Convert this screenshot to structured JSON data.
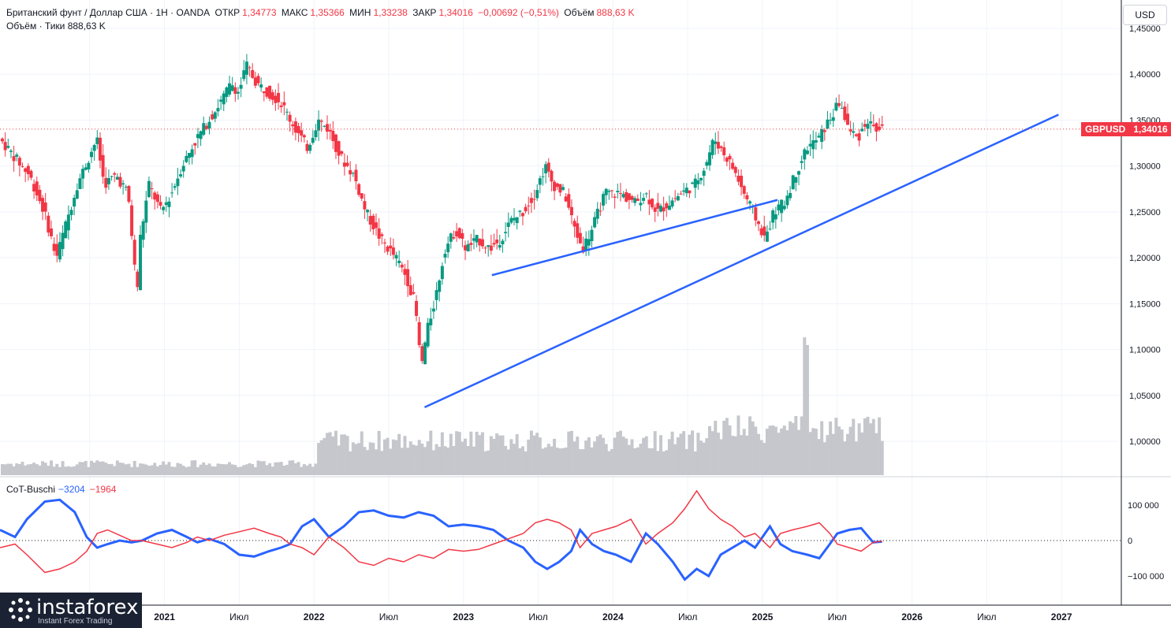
{
  "header": {
    "symbol": "Британский фунт / Доллар США · 1Н · OANDA",
    "open_label": "ОТКР",
    "open": "1,34773",
    "high_label": "МАКС",
    "high": "1,35366",
    "low_label": "МИН",
    "low": "1,33238",
    "close_label": "ЗАКР",
    "close": "1,34016",
    "change": "−0,00692 (−0,51%)",
    "volume_label": "Объём",
    "volume": "888,63 K",
    "line2_label": "Объём · Тики",
    "line2_value": "888,63 K"
  },
  "currency": "USD",
  "price_tag": {
    "symbol": "GBPUSD",
    "value": "1,34016"
  },
  "cot": {
    "label": "CoT-Buschi",
    "blue_value": "−3204",
    "red_value": "−1964"
  },
  "colors": {
    "up": "#089981",
    "down": "#f23645",
    "trend": "#2962ff",
    "volume": "#c5c7cc",
    "cot_blue": "#2962ff",
    "cot_red": "#f23645"
  },
  "logo": {
    "name": "instaforex",
    "tagline": "Instant Forex Trading"
  },
  "chart_data": [
    {
      "type": "candlestick",
      "symbol": "GBPUSD",
      "last_price": 1.34016,
      "ylim": [
        0.97,
        1.46
      ],
      "yticks": [
        "1,45000",
        "1,40000",
        "1,35000",
        "1,30000",
        "1,25000",
        "1,20000",
        "1,15000",
        "1,10000",
        "1,05000",
        "1,00000"
      ],
      "ytick_values": [
        1.45,
        1.4,
        1.35,
        1.3,
        1.25,
        1.2,
        1.15,
        1.1,
        1.05,
        1.0
      ],
      "xticks": [
        "Июл",
        "2021",
        "Июл",
        "2022",
        "Июл",
        "2023",
        "Июл",
        "2024",
        "Июл",
        "2025",
        "Июл",
        "2026",
        "Июл",
        "2027"
      ],
      "xtick_times": [
        2020.5,
        2021.0,
        2021.5,
        2022.0,
        2022.5,
        2023.0,
        2023.5,
        2024.0,
        2024.5,
        2025.0,
        2025.5,
        2026.0,
        2026.5,
        2027.0
      ],
      "xlim": [
        2019.9,
        2027.4
      ],
      "price_path": [
        [
          2019.9,
          1.33
        ],
        [
          2020.0,
          1.31
        ],
        [
          2020.1,
          1.29
        ],
        [
          2020.2,
          1.25
        ],
        [
          2020.28,
          1.2
        ],
        [
          2020.35,
          1.24
        ],
        [
          2020.42,
          1.28
        ],
        [
          2020.5,
          1.31
        ],
        [
          2020.55,
          1.33
        ],
        [
          2020.6,
          1.28
        ],
        [
          2020.68,
          1.29
        ],
        [
          2020.76,
          1.27
        ],
        [
          2020.82,
          1.16
        ],
        [
          2020.84,
          1.22
        ],
        [
          2020.9,
          1.28
        ],
        [
          2020.98,
          1.25
        ],
        [
          2021.05,
          1.27
        ],
        [
          2021.12,
          1.3
        ],
        [
          2021.22,
          1.33
        ],
        [
          2021.3,
          1.35
        ],
        [
          2021.38,
          1.37
        ],
        [
          2021.45,
          1.39
        ],
        [
          2021.5,
          1.38
        ],
        [
          2021.55,
          1.41
        ],
        [
          2021.62,
          1.39
        ],
        [
          2021.7,
          1.38
        ],
        [
          2021.78,
          1.37
        ],
        [
          2021.88,
          1.34
        ],
        [
          2021.96,
          1.32
        ],
        [
          2022.03,
          1.35
        ],
        [
          2022.1,
          1.34
        ],
        [
          2022.18,
          1.31
        ],
        [
          2022.27,
          1.29
        ],
        [
          2022.35,
          1.25
        ],
        [
          2022.45,
          1.22
        ],
        [
          2022.55,
          1.2
        ],
        [
          2022.62,
          1.18
        ],
        [
          2022.68,
          1.15
        ],
        [
          2022.72,
          1.08
        ],
        [
          2022.76,
          1.12
        ],
        [
          2022.82,
          1.16
        ],
        [
          2022.88,
          1.21
        ],
        [
          2022.95,
          1.23
        ],
        [
          2023.02,
          1.21
        ],
        [
          2023.1,
          1.22
        ],
        [
          2023.18,
          1.21
        ],
        [
          2023.25,
          1.22
        ],
        [
          2023.32,
          1.24
        ],
        [
          2023.4,
          1.25
        ],
        [
          2023.48,
          1.27
        ],
        [
          2023.55,
          1.3
        ],
        [
          2023.6,
          1.28
        ],
        [
          2023.68,
          1.27
        ],
        [
          2023.75,
          1.23
        ],
        [
          2023.8,
          1.21
        ],
        [
          2023.86,
          1.23
        ],
        [
          2023.95,
          1.27
        ],
        [
          2024.05,
          1.27
        ],
        [
          2024.15,
          1.26
        ],
        [
          2024.22,
          1.27
        ],
        [
          2024.3,
          1.25
        ],
        [
          2024.38,
          1.26
        ],
        [
          2024.46,
          1.27
        ],
        [
          2024.55,
          1.28
        ],
        [
          2024.62,
          1.3
        ],
        [
          2024.68,
          1.33
        ],
        [
          2024.72,
          1.32
        ],
        [
          2024.8,
          1.3
        ],
        [
          2024.88,
          1.27
        ],
        [
          2024.94,
          1.25
        ],
        [
          2025.02,
          1.22
        ],
        [
          2025.08,
          1.25
        ],
        [
          2025.15,
          1.26
        ],
        [
          2025.22,
          1.29
        ],
        [
          2025.3,
          1.32
        ],
        [
          2025.38,
          1.33
        ],
        [
          2025.45,
          1.35
        ],
        [
          2025.52,
          1.37
        ],
        [
          2025.58,
          1.34
        ],
        [
          2025.64,
          1.33
        ],
        [
          2025.7,
          1.35
        ],
        [
          2025.76,
          1.34
        ],
        [
          2025.8,
          1.34016
        ]
      ],
      "trendlines": [
        {
          "from": [
            2022.74,
            1.037
          ],
          "to": [
            2026.98,
            1.356
          ]
        },
        {
          "from": [
            2023.19,
            1.181
          ],
          "to": [
            2025.1,
            1.263
          ]
        }
      ]
    },
    {
      "type": "line",
      "title": "CoT-Buschi",
      "ylim": [
        -170000,
        165000
      ],
      "yticks": [
        "100 000",
        "0",
        "−100 000"
      ],
      "ytick_values": [
        100000,
        0,
        -100000
      ],
      "series": [
        {
          "name": "−3204",
          "color": "#2962ff",
          "points": [
            [
              2019.9,
              30000
            ],
            [
              2020.0,
              10000
            ],
            [
              2020.08,
              60000
            ],
            [
              2020.2,
              110000
            ],
            [
              2020.3,
              115000
            ],
            [
              2020.4,
              80000
            ],
            [
              2020.48,
              10000
            ],
            [
              2020.55,
              -20000
            ],
            [
              2020.62,
              -10000
            ],
            [
              2020.7,
              0
            ],
            [
              2020.78,
              -5000
            ],
            [
              2020.85,
              0
            ],
            [
              2020.95,
              20000
            ],
            [
              2021.05,
              30000
            ],
            [
              2021.15,
              10000
            ],
            [
              2021.22,
              -5000
            ],
            [
              2021.3,
              5000
            ],
            [
              2021.4,
              -10000
            ],
            [
              2021.5,
              -40000
            ],
            [
              2021.6,
              -45000
            ],
            [
              2021.7,
              -30000
            ],
            [
              2021.78,
              -20000
            ],
            [
              2021.84,
              -10000
            ],
            [
              2021.92,
              40000
            ],
            [
              2022.0,
              60000
            ],
            [
              2022.1,
              10000
            ],
            [
              2022.2,
              40000
            ],
            [
              2022.3,
              80000
            ],
            [
              2022.4,
              85000
            ],
            [
              2022.5,
              70000
            ],
            [
              2022.6,
              65000
            ],
            [
              2022.7,
              80000
            ],
            [
              2022.8,
              70000
            ],
            [
              2022.9,
              40000
            ],
            [
              2023.0,
              45000
            ],
            [
              2023.1,
              40000
            ],
            [
              2023.2,
              30000
            ],
            [
              2023.3,
              0
            ],
            [
              2023.4,
              -20000
            ],
            [
              2023.48,
              -60000
            ],
            [
              2023.56,
              -80000
            ],
            [
              2023.64,
              -60000
            ],
            [
              2023.72,
              -30000
            ],
            [
              2023.78,
              30000
            ],
            [
              2023.86,
              -10000
            ],
            [
              2023.94,
              -30000
            ],
            [
              2024.02,
              -40000
            ],
            [
              2024.12,
              -60000
            ],
            [
              2024.22,
              20000
            ],
            [
              2024.3,
              -10000
            ],
            [
              2024.4,
              -60000
            ],
            [
              2024.48,
              -110000
            ],
            [
              2024.56,
              -80000
            ],
            [
              2024.64,
              -100000
            ],
            [
              2024.72,
              -40000
            ],
            [
              2024.8,
              -20000
            ],
            [
              2024.88,
              0
            ],
            [
              2024.95,
              -20000
            ],
            [
              2025.05,
              40000
            ],
            [
              2025.12,
              -10000
            ],
            [
              2025.2,
              -30000
            ],
            [
              2025.3,
              -40000
            ],
            [
              2025.38,
              -50000
            ],
            [
              2025.45,
              -10000
            ],
            [
              2025.5,
              20000
            ],
            [
              2025.58,
              30000
            ],
            [
              2025.66,
              35000
            ],
            [
              2025.74,
              -5000
            ],
            [
              2025.8,
              -3204
            ]
          ]
        },
        {
          "name": "−1964",
          "color": "#f23645",
          "points": [
            [
              2019.9,
              -20000
            ],
            [
              2020.0,
              -10000
            ],
            [
              2020.08,
              -40000
            ],
            [
              2020.2,
              -90000
            ],
            [
              2020.3,
              -80000
            ],
            [
              2020.4,
              -60000
            ],
            [
              2020.48,
              -30000
            ],
            [
              2020.55,
              20000
            ],
            [
              2020.62,
              30000
            ],
            [
              2020.7,
              15000
            ],
            [
              2020.78,
              0
            ],
            [
              2020.85,
              0
            ],
            [
              2020.95,
              -10000
            ],
            [
              2021.05,
              -20000
            ],
            [
              2021.15,
              -5000
            ],
            [
              2021.22,
              10000
            ],
            [
              2021.3,
              0
            ],
            [
              2021.4,
              15000
            ],
            [
              2021.5,
              25000
            ],
            [
              2021.6,
              35000
            ],
            [
              2021.7,
              20000
            ],
            [
              2021.78,
              10000
            ],
            [
              2021.84,
              -10000
            ],
            [
              2021.92,
              -20000
            ],
            [
              2022.0,
              -40000
            ],
            [
              2022.1,
              10000
            ],
            [
              2022.2,
              -20000
            ],
            [
              2022.3,
              -60000
            ],
            [
              2022.4,
              -70000
            ],
            [
              2022.5,
              -50000
            ],
            [
              2022.6,
              -60000
            ],
            [
              2022.7,
              -40000
            ],
            [
              2022.8,
              -50000
            ],
            [
              2022.9,
              -25000
            ],
            [
              2023.0,
              -30000
            ],
            [
              2023.1,
              -25000
            ],
            [
              2023.2,
              -10000
            ],
            [
              2023.3,
              5000
            ],
            [
              2023.4,
              20000
            ],
            [
              2023.48,
              50000
            ],
            [
              2023.56,
              60000
            ],
            [
              2023.64,
              50000
            ],
            [
              2023.72,
              30000
            ],
            [
              2023.78,
              -20000
            ],
            [
              2023.86,
              20000
            ],
            [
              2023.94,
              30000
            ],
            [
              2024.02,
              40000
            ],
            [
              2024.12,
              60000
            ],
            [
              2024.22,
              -10000
            ],
            [
              2024.3,
              20000
            ],
            [
              2024.4,
              50000
            ],
            [
              2024.48,
              90000
            ],
            [
              2024.56,
              140000
            ],
            [
              2024.64,
              90000
            ],
            [
              2024.72,
              60000
            ],
            [
              2024.8,
              40000
            ],
            [
              2024.88,
              10000
            ],
            [
              2024.95,
              20000
            ],
            [
              2025.05,
              -20000
            ],
            [
              2025.12,
              20000
            ],
            [
              2025.2,
              30000
            ],
            [
              2025.3,
              40000
            ],
            [
              2025.38,
              50000
            ],
            [
              2025.45,
              20000
            ],
            [
              2025.5,
              -10000
            ],
            [
              2025.58,
              -20000
            ],
            [
              2025.66,
              -30000
            ],
            [
              2025.74,
              -5000
            ],
            [
              2025.8,
              -1964
            ]
          ]
        }
      ]
    }
  ]
}
